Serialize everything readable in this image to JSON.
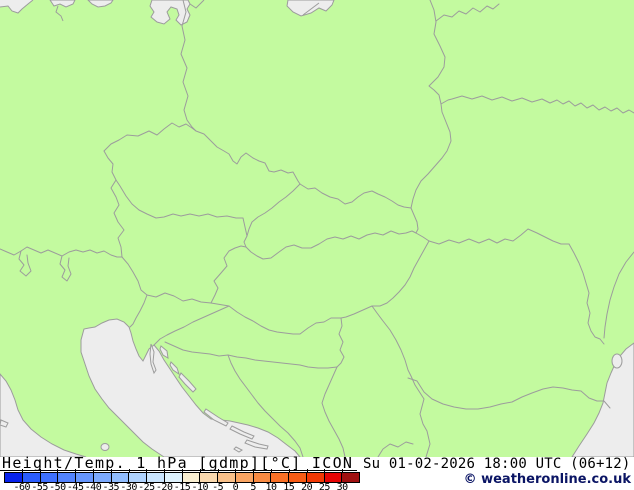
{
  "legend": {
    "title": "Height/Temp. 1 hPa [gdmp][°C] ICON",
    "datetime": "Su 01-02-2026 18:00 UTC (06+12)",
    "copyright": "© weatheronline.co.uk",
    "scale": {
      "unit": "°C",
      "labels": [
        "-60",
        "-55",
        "-50",
        "-45",
        "-40",
        "-35",
        "-30",
        "-25",
        "-20",
        "-15",
        "-10",
        "-5",
        "0",
        "5",
        "10",
        "15",
        "20",
        "25",
        "30"
      ],
      "colors": [
        "#0722ec",
        "#2a5cfd",
        "#3e70fd",
        "#5283fd",
        "#6696fd",
        "#7ba9fd",
        "#90bcfd",
        "#aed2fd",
        "#c9e4fd",
        "#def2fd",
        "#f9efd1",
        "#f9d8ad",
        "#f8c089",
        "#f9a462",
        "#f88a42",
        "#f87026",
        "#f75c15",
        "#f23804",
        "#e60404",
        "#a01111"
      ]
    }
  },
  "map": {
    "land_color": "#c3fa9f",
    "sea_color": "#ededed",
    "border_color": "#9c9c9c",
    "region": "Central Europe"
  }
}
